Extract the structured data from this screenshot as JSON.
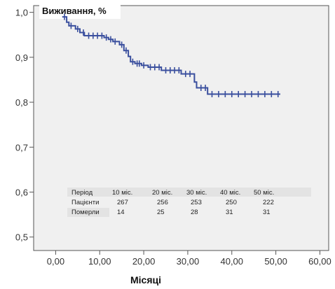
{
  "chart_data": {
    "type": "line",
    "title": "Виживання, %",
    "xlabel": "Місяці",
    "ylabel": "",
    "xlim": [
      -5,
      62
    ],
    "ylim": [
      0.47,
      1.015
    ],
    "x_ticks": [
      0,
      10,
      20,
      30,
      40,
      50,
      60
    ],
    "x_tick_labels": [
      "0,00",
      "10,00",
      "20,00",
      "30,00",
      "40,00",
      "50,00",
      "60,00"
    ],
    "y_ticks": [
      0.5,
      0.6,
      0.7,
      0.8,
      0.9,
      1.0
    ],
    "y_tick_labels": [
      "0,5",
      "0,6",
      "0,7",
      "0,8",
      "0,9",
      "1,0"
    ],
    "grid": false,
    "colors": {
      "line": "#3a4f9e",
      "plot_bg": "#f0f0f0",
      "table_band": "#e3e3e3"
    },
    "series": [
      {
        "name": "",
        "steps": [
          [
            1.5,
            0.99
          ],
          [
            2.5,
            0.978
          ],
          [
            3,
            0.97
          ],
          [
            4.5,
            0.963
          ],
          [
            5.5,
            0.955
          ],
          [
            6.5,
            0.948
          ],
          [
            11,
            0.944
          ],
          [
            12,
            0.94
          ],
          [
            13,
            0.935
          ],
          [
            14.5,
            0.928
          ],
          [
            15.5,
            0.915
          ],
          [
            16.5,
            0.902
          ],
          [
            17,
            0.89
          ],
          [
            18,
            0.886
          ],
          [
            19.5,
            0.882
          ],
          [
            21,
            0.878
          ],
          [
            24,
            0.871
          ],
          [
            28.5,
            0.863
          ],
          [
            31.5,
            0.845
          ],
          [
            32,
            0.832
          ],
          [
            34.5,
            0.818
          ],
          [
            51,
            0.818
          ]
        ],
        "censored": [
          [
            2,
            0.99
          ],
          [
            3.5,
            0.97
          ],
          [
            5,
            0.963
          ],
          [
            6.3,
            0.955
          ],
          [
            7.5,
            0.948
          ],
          [
            8.5,
            0.948
          ],
          [
            9.5,
            0.948
          ],
          [
            10.5,
            0.948
          ],
          [
            11.5,
            0.944
          ],
          [
            12.5,
            0.94
          ],
          [
            13.5,
            0.935
          ],
          [
            15,
            0.928
          ],
          [
            16,
            0.915
          ],
          [
            17.5,
            0.89
          ],
          [
            18.5,
            0.886
          ],
          [
            19,
            0.886
          ],
          [
            20,
            0.882
          ],
          [
            21.5,
            0.878
          ],
          [
            22.5,
            0.878
          ],
          [
            23.5,
            0.878
          ],
          [
            25,
            0.871
          ],
          [
            26,
            0.871
          ],
          [
            27,
            0.871
          ],
          [
            28,
            0.871
          ],
          [
            29.5,
            0.863
          ],
          [
            30.5,
            0.863
          ],
          [
            33,
            0.832
          ],
          [
            34,
            0.832
          ],
          [
            35.5,
            0.818
          ],
          [
            37,
            0.818
          ],
          [
            38.5,
            0.818
          ],
          [
            40,
            0.818
          ],
          [
            41.5,
            0.818
          ],
          [
            43,
            0.818
          ],
          [
            44.5,
            0.818
          ],
          [
            46,
            0.818
          ],
          [
            47.5,
            0.818
          ],
          [
            49,
            0.818
          ],
          [
            50.5,
            0.818
          ]
        ]
      }
    ],
    "table": {
      "columns": [
        "10 міс.",
        "20 міс.",
        "30 міс.",
        "40 міс.",
        "50 міс."
      ],
      "rows": [
        {
          "label": "Період",
          "values": [
            "",
            "",
            "",
            "",
            ""
          ]
        },
        {
          "label": "Пацієнти",
          "values": [
            "267",
            "256",
            "253",
            "250",
            "222"
          ]
        },
        {
          "label": "Померли",
          "values": [
            "14",
            "25",
            "28",
            "31",
            "31"
          ]
        }
      ]
    }
  }
}
